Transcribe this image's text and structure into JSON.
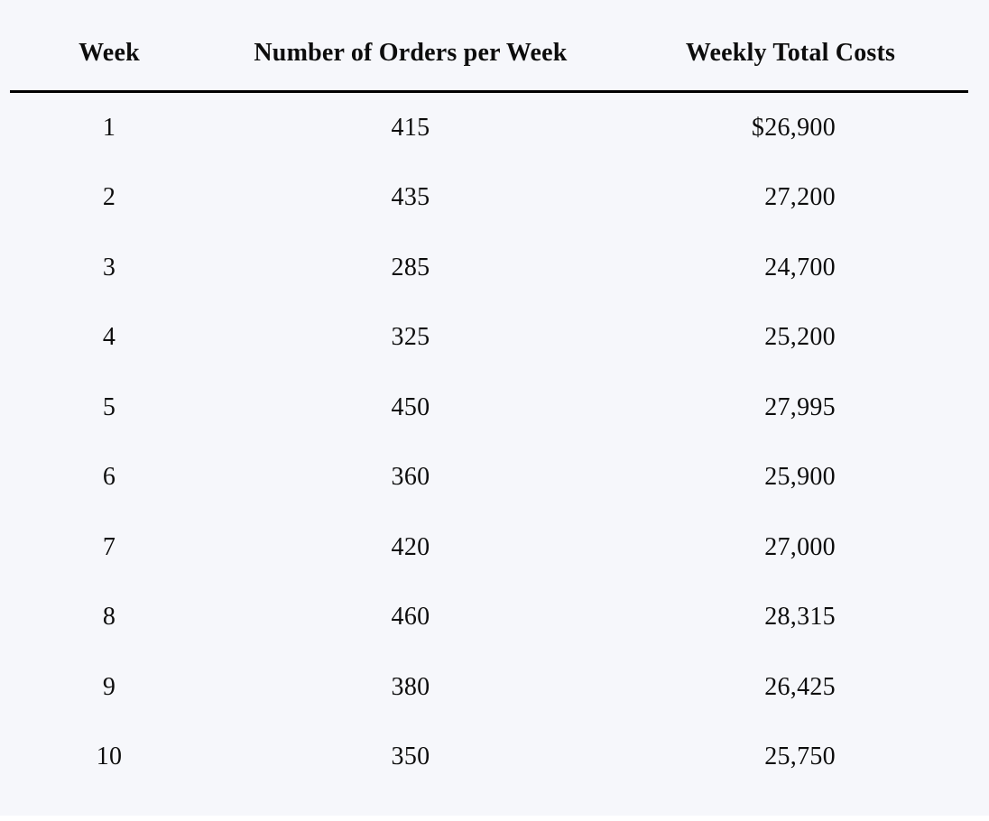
{
  "page": {
    "background_color": "#f6f7fb",
    "text_color": "#0d0d0d",
    "rule_color": "#000000",
    "bottom_strip_color": "#ffffff"
  },
  "table": {
    "columns": [
      "Week",
      "Number of Orders per Week",
      "Weekly Total Costs"
    ],
    "rows": [
      [
        "1",
        "415",
        "$26,900"
      ],
      [
        "2",
        "435",
        "27,200"
      ],
      [
        "3",
        "285",
        "24,700"
      ],
      [
        "4",
        "325",
        "25,200"
      ],
      [
        "5",
        "450",
        "27,995"
      ],
      [
        "6",
        "360",
        "25,900"
      ],
      [
        "7",
        "420",
        "27,000"
      ],
      [
        "8",
        "460",
        "28,315"
      ],
      [
        "9",
        "380",
        "26,425"
      ],
      [
        "10",
        "350",
        "25,750"
      ]
    ]
  },
  "chart_data": {
    "type": "table",
    "columns": [
      "Week",
      "Number of Orders per Week",
      "Weekly Total Costs"
    ],
    "weeks": [
      1,
      2,
      3,
      4,
      5,
      6,
      7,
      8,
      9,
      10
    ],
    "orders_per_week": [
      415,
      435,
      285,
      325,
      450,
      360,
      420,
      460,
      380,
      350
    ],
    "weekly_total_costs_usd": [
      26900,
      27200,
      24700,
      25200,
      27995,
      25900,
      27000,
      28315,
      26425,
      25750
    ]
  }
}
